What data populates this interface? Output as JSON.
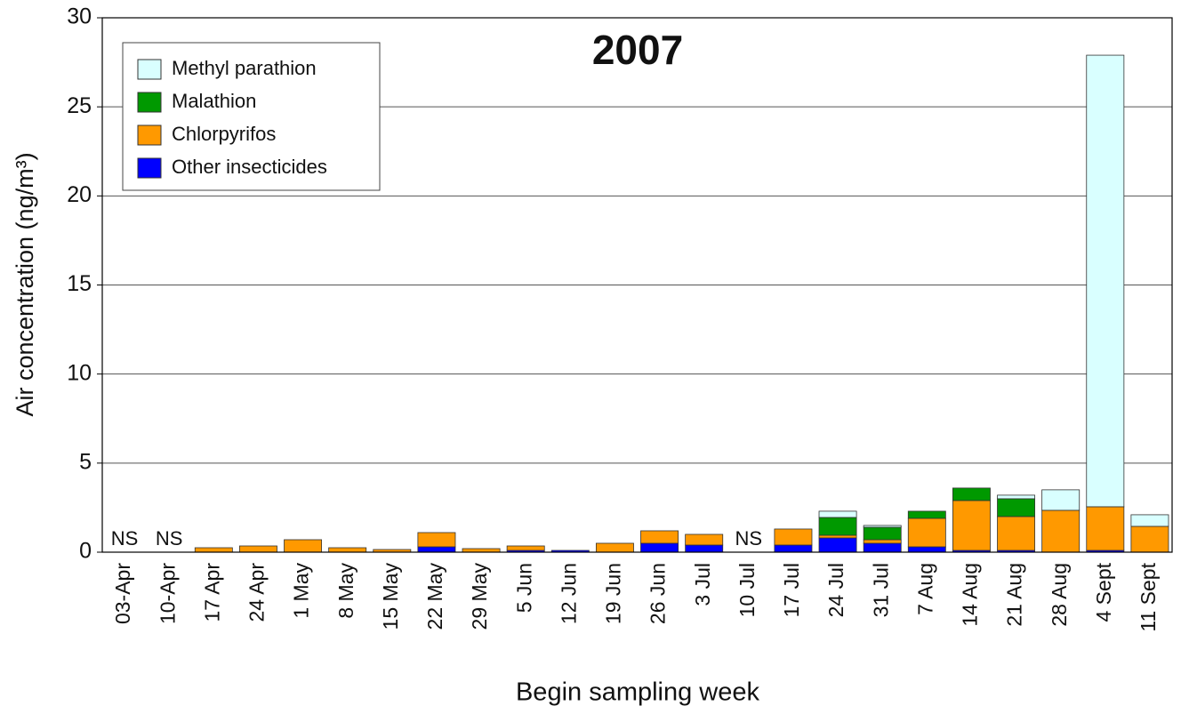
{
  "chart_data": {
    "type": "stacked_bar",
    "title": "2007",
    "x_label": "Begin sampling week",
    "y_label": "Air concentration (ng/m³)",
    "categories": [
      "03-Apr",
      "10-Apr",
      "17 Apr",
      "24 Apr",
      "1 May",
      "8 May",
      "15 May",
      "22 May",
      "29 May",
      "5 Jun",
      "12 Jun",
      "19 Jun",
      "26 Jun",
      "3 Jul",
      "10 Jul",
      "17 Jul",
      "24 Jul",
      "31 Jul",
      "7 Aug",
      "14 Aug",
      "21 Aug",
      "28 Aug",
      "4 Sept",
      "11 Sept"
    ],
    "series": [
      {
        "name": "Other insecticides",
        "color": "#0000ff",
        "values": [
          null,
          null,
          0,
          0,
          0,
          0,
          0,
          0.3,
          0,
          0.1,
          0.1,
          0,
          0.5,
          0.4,
          null,
          0.4,
          0.8,
          0.5,
          0.3,
          0.1,
          0.1,
          0,
          0.1,
          0
        ]
      },
      {
        "name": "Chlorpyrifos",
        "color": "#ff9900",
        "values": [
          null,
          null,
          0.25,
          0.35,
          0.7,
          0.25,
          0.15,
          0.8,
          0.2,
          0.25,
          0,
          0.5,
          0.7,
          0.6,
          null,
          0.9,
          0.15,
          0.2,
          1.6,
          2.8,
          1.9,
          2.35,
          2.45,
          1.45
        ]
      },
      {
        "name": "Malathion",
        "color": "#009900",
        "values": [
          null,
          null,
          0,
          0,
          0,
          0,
          0,
          0,
          0,
          0,
          0,
          0,
          0,
          0,
          null,
          0,
          1.0,
          0.7,
          0.4,
          0.7,
          1.0,
          0,
          0,
          0
        ]
      },
      {
        "name": "Methyl parathion",
        "color": "#d9ffff",
        "values": [
          null,
          null,
          0,
          0,
          0,
          0,
          0,
          0,
          0,
          0,
          0,
          0,
          0,
          0,
          null,
          0,
          0.35,
          0.1,
          0,
          0,
          0.2,
          1.15,
          25.35,
          0.65
        ]
      }
    ],
    "annotations": [
      {
        "text": "NS",
        "category": "03-Apr"
      },
      {
        "text": "NS",
        "category": "10-Apr"
      },
      {
        "text": "NS",
        "category": "10 Jul"
      }
    ],
    "ylim": [
      0,
      30
    ],
    "yticks": [
      0,
      5,
      10,
      15,
      20,
      25,
      30
    ],
    "grid": true,
    "legend": "upper left"
  }
}
